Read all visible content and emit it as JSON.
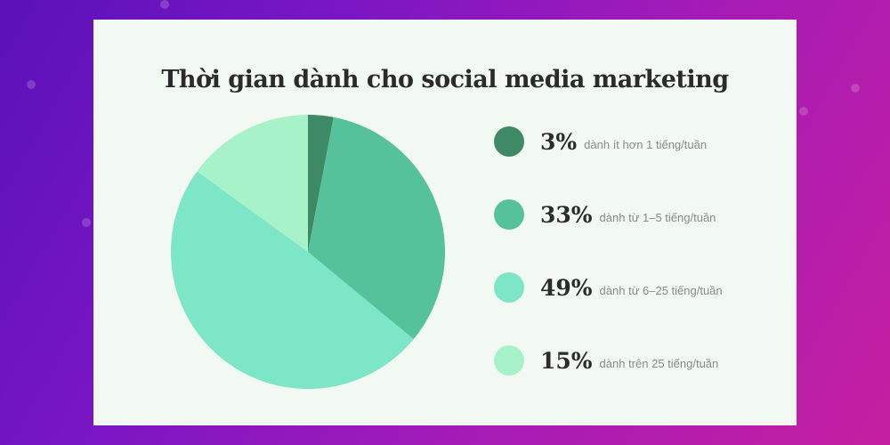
{
  "chart_data": {
    "type": "pie",
    "title": "Thời gian dành cho social media marketing",
    "slices": [
      {
        "value": 3,
        "label": "3%",
        "desc": "dành ít hơn 1 tiếng/tuần",
        "color": "#3e8a66"
      },
      {
        "value": 33,
        "label": "33%",
        "desc": "dành từ 1–5 tiếng/tuần",
        "color": "#55c29b"
      },
      {
        "value": 49,
        "label": "49%",
        "desc": "dành từ 6–25 tiếng/tuần",
        "color": "#7ce6c7"
      },
      {
        "value": 15,
        "label": "15%",
        "desc": "dành trên 25 tiếng/tuần",
        "color": "#a7f2c8"
      }
    ]
  }
}
